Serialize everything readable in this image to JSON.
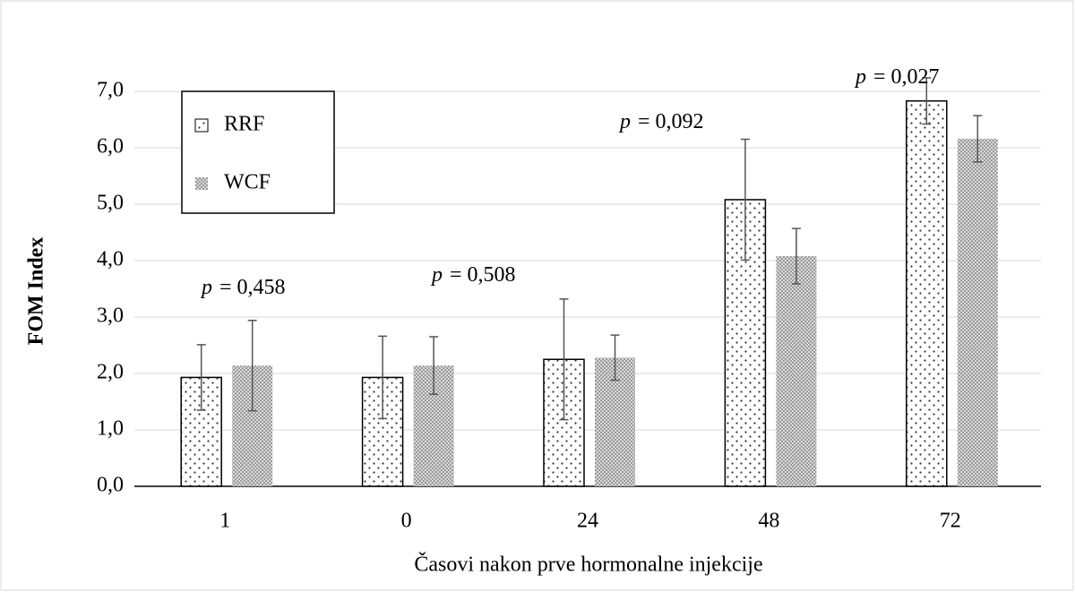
{
  "chart_data": {
    "type": "bar",
    "x_label": "Časovi nakon prve hormonalne injekcije",
    "y_label": "FOM Index",
    "categories": [
      "1",
      "0",
      "24",
      "48",
      "72"
    ],
    "series": [
      {
        "name": "RRF",
        "color": "#ffffff",
        "values": [
          1.93,
          1.93,
          2.25,
          5.08,
          6.83
        ],
        "errors": [
          0.58,
          0.73,
          1.07,
          1.07,
          0.41
        ]
      },
      {
        "name": "WCF",
        "color": "#bdbdbd",
        "values": [
          2.14,
          2.14,
          2.28,
          4.08,
          6.16
        ],
        "errors": [
          0.8,
          0.51,
          0.4,
          0.49,
          0.41
        ]
      }
    ],
    "ylim": [
      0,
      7
    ],
    "yticks": [
      {
        "value": 0,
        "label": "0,0"
      },
      {
        "value": 1,
        "label": "1,0"
      },
      {
        "value": 2,
        "label": "2,0"
      },
      {
        "value": 3,
        "label": "3,0"
      },
      {
        "value": 4,
        "label": "4,0"
      },
      {
        "value": 5,
        "label": "5,0"
      },
      {
        "value": 6,
        "label": "6,0"
      },
      {
        "value": 7,
        "label": "7,0"
      }
    ],
    "grid": true,
    "legend": "upper left",
    "annotations": [
      {
        "symbol": "p",
        "text": "= 0,458"
      },
      {
        "symbol": "p",
        "text": "= 0,508"
      },
      {
        "symbol": "p",
        "text": "= 0,092"
      },
      {
        "symbol": "p",
        "text": "= 0,027"
      }
    ]
  }
}
